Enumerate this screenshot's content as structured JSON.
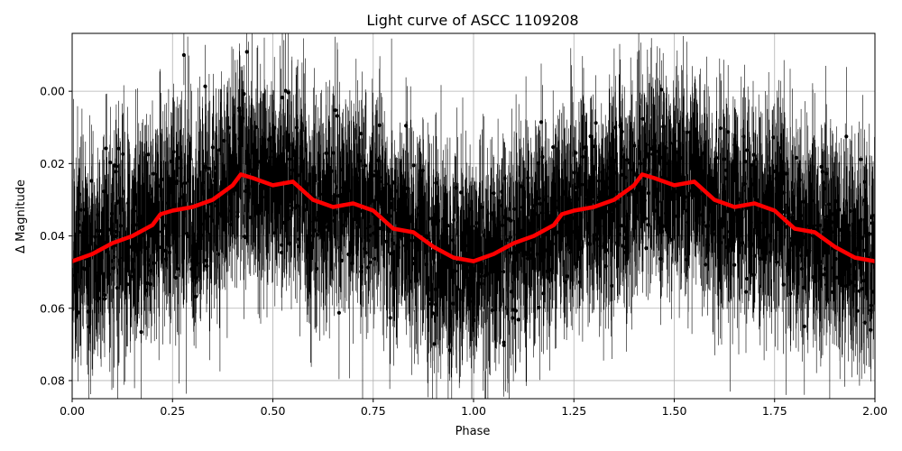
{
  "chart_data": {
    "type": "scatter",
    "title": "Light curve of ASCC 1109208",
    "xlabel": "Phase",
    "ylabel": "Δ Magnitude",
    "xlim": [
      0.0,
      2.0
    ],
    "ylim": [
      0.085,
      -0.016
    ],
    "y_inverted": true,
    "grid": true,
    "x_ticks": [
      "0.00",
      "0.25",
      "0.50",
      "0.75",
      "1.00",
      "1.25",
      "1.50",
      "1.75",
      "2.00"
    ],
    "y_ticks": [
      "0.00",
      "0.02",
      "0.04",
      "0.06",
      "0.08"
    ],
    "series": [
      {
        "kind": "points-with-errorbars",
        "color": "#000000",
        "phase_range": [
          0.0,
          2.0
        ],
        "typical_error": 0.012
      },
      {
        "kind": "binned-median-line",
        "color": "#ff0000",
        "x": [
          0.0,
          0.05,
          0.1,
          0.15,
          0.2,
          0.22,
          0.25,
          0.3,
          0.35,
          0.4,
          0.42,
          0.45,
          0.5,
          0.55,
          0.6,
          0.65,
          0.7,
          0.75,
          0.8,
          0.85,
          0.9,
          0.95,
          1.0,
          1.05,
          1.1,
          1.15,
          1.2,
          1.22,
          1.25,
          1.3,
          1.35,
          1.4,
          1.42,
          1.45,
          1.5,
          1.55,
          1.6,
          1.65,
          1.7,
          1.75,
          1.8,
          1.85,
          1.9,
          1.95,
          2.0
        ],
        "y": [
          0.047,
          0.045,
          0.042,
          0.04,
          0.037,
          0.034,
          0.033,
          0.032,
          0.03,
          0.026,
          0.023,
          0.024,
          0.026,
          0.025,
          0.03,
          0.032,
          0.031,
          0.033,
          0.038,
          0.039,
          0.043,
          0.046,
          0.047,
          0.045,
          0.042,
          0.04,
          0.037,
          0.034,
          0.033,
          0.032,
          0.03,
          0.026,
          0.023,
          0.024,
          0.026,
          0.025,
          0.03,
          0.032,
          0.031,
          0.033,
          0.038,
          0.039,
          0.043,
          0.046,
          0.047
        ]
      }
    ]
  }
}
